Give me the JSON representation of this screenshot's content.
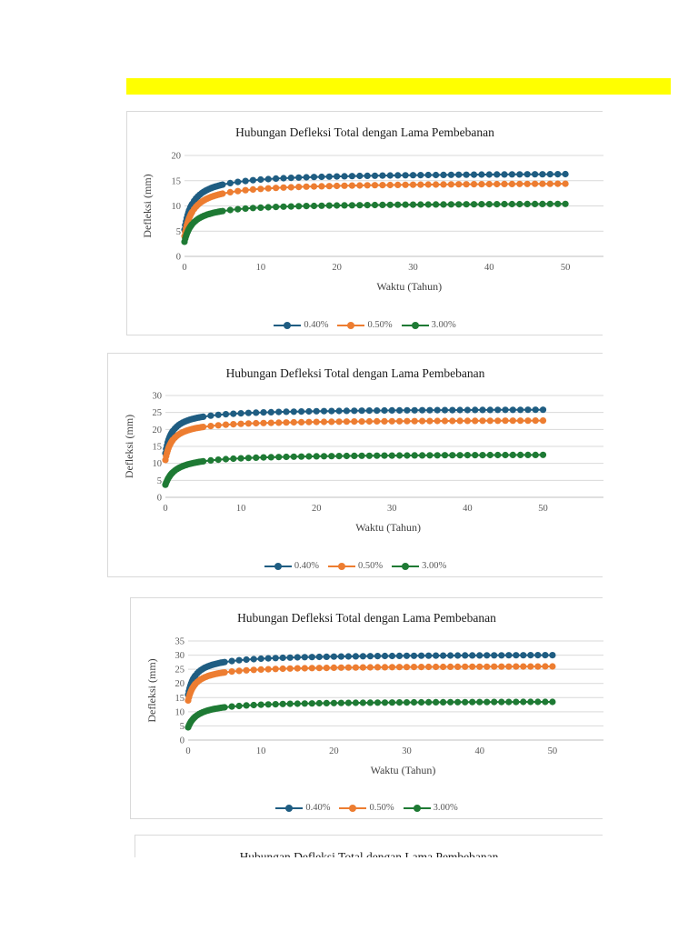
{
  "highlight_color": "#ffff00",
  "series_colors": [
    "#1f5d82",
    "#ed7d31",
    "#1e7a34"
  ],
  "chart_data": [
    {
      "type": "line",
      "title": "Hubungan Defleksi Total dengan Lama Pembebanan",
      "xlabel": "Waktu (Tahun)",
      "ylabel": "Defleksi (mm)",
      "xlim": [
        0,
        55
      ],
      "ylim": [
        0,
        20
      ],
      "xticks": [
        0,
        10,
        20,
        30,
        40,
        50
      ],
      "yticks": [
        0,
        5,
        10,
        15,
        20
      ],
      "grid": true,
      "legend_position": "bottom",
      "series": [
        {
          "name": "0.40%",
          "start": 5.3,
          "end": 16.3,
          "k": 1.0
        },
        {
          "name": "0.50%",
          "start": 4.0,
          "end": 14.4,
          "k": 1.0
        },
        {
          "name": "3.00%",
          "start": 2.9,
          "end": 10.4,
          "k": 1.0
        }
      ]
    },
    {
      "type": "line",
      "title": "Hubungan Defleksi Total dengan Lama Pembebanan",
      "xlabel": "Waktu (Tahun)",
      "ylabel": "Defleksi (mm)",
      "xlim": [
        0,
        58
      ],
      "ylim": [
        0,
        30
      ],
      "xticks": [
        0,
        10,
        20,
        30,
        40,
        50
      ],
      "yticks": [
        0,
        5,
        10,
        15,
        20,
        25,
        30
      ],
      "grid": true,
      "legend_position": "bottom",
      "series": [
        {
          "name": "0.40%",
          "start": 13.0,
          "end": 25.8,
          "k": 0.8
        },
        {
          "name": "0.50%",
          "start": 11.0,
          "end": 22.6,
          "k": 0.8
        },
        {
          "name": "3.00%",
          "start": 3.7,
          "end": 12.5,
          "k": 1.2
        }
      ]
    },
    {
      "type": "line",
      "title": "Hubungan Defleksi Total dengan Lama Pembebanan",
      "xlabel": "Waktu (Tahun)",
      "ylabel": "Defleksi (mm)",
      "xlim": [
        0,
        57
      ],
      "ylim": [
        0,
        35
      ],
      "xticks": [
        0,
        10,
        20,
        30,
        40,
        50
      ],
      "yticks": [
        0,
        5,
        10,
        15,
        20,
        25,
        30,
        35
      ],
      "grid": true,
      "legend_position": "bottom",
      "series": [
        {
          "name": "0.40%",
          "start": 16.0,
          "end": 30.0,
          "k": 0.9
        },
        {
          "name": "0.50%",
          "start": 14.0,
          "end": 26.0,
          "k": 0.9
        },
        {
          "name": "3.00%",
          "start": 4.5,
          "end": 13.5,
          "k": 1.2
        }
      ]
    },
    {
      "type": "line",
      "title": "Hubungan Defleksi Total dengan Lama Pembebanan",
      "partial": true
    }
  ]
}
